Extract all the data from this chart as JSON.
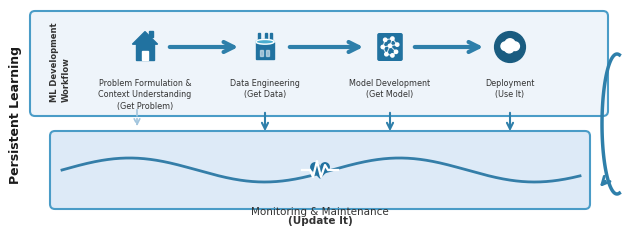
{
  "outer_box_color": "#4a9cc7",
  "outer_box_fill": "#ffffff",
  "inner_top_fill": "#eef4fa",
  "inner_bottom_fill": "#ddeaf7",
  "persistent_label": "Persistent Learning",
  "workflow_label": "ML Development\nWorkflow",
  "steps": [
    {
      "label": "Problem Formulation &\nContext Understanding\n(Get Problem)"
    },
    {
      "label": "Data Engineering\n(Get Data)"
    },
    {
      "label": "Model Development\n(Get Model)"
    },
    {
      "label": "Deployment\n(Use It)"
    }
  ],
  "monitoring_label": "Monitoring & Maintenance",
  "monitoring_sub": "(Update It)",
  "arrow_color": "#2e7faa",
  "icon_color": "#2172a0",
  "dark_bg_color": "#1a5c80",
  "wave_color": "#2172a0",
  "text_color": "#333333",
  "dashed_arrow_color": "#a0c4dd"
}
